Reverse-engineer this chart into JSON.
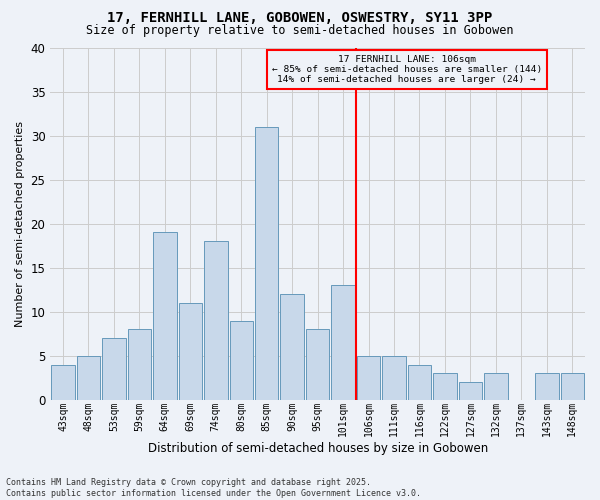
{
  "title1": "17, FERNHILL LANE, GOBOWEN, OSWESTRY, SY11 3PP",
  "title2": "Size of property relative to semi-detached houses in Gobowen",
  "xlabel": "Distribution of semi-detached houses by size in Gobowen",
  "ylabel": "Number of semi-detached properties",
  "categories": [
    "43sqm",
    "48sqm",
    "53sqm",
    "59sqm",
    "64sqm",
    "69sqm",
    "74sqm",
    "80sqm",
    "85sqm",
    "90sqm",
    "95sqm",
    "101sqm",
    "106sqm",
    "111sqm",
    "116sqm",
    "122sqm",
    "127sqm",
    "132sqm",
    "137sqm",
    "143sqm",
    "148sqm"
  ],
  "values": [
    4,
    5,
    7,
    8,
    19,
    11,
    18,
    9,
    31,
    12,
    8,
    13,
    5,
    5,
    4,
    3,
    2,
    3,
    0,
    3,
    3
  ],
  "bar_color": "#c8d8ea",
  "bar_edge_color": "#6699bb",
  "grid_color": "#cccccc",
  "bg_color": "#eef2f8",
  "vline_color": "red",
  "vline_idx": 12,
  "annotation_title": "17 FERNHILL LANE: 106sqm",
  "annotation_line1": "← 85% of semi-detached houses are smaller (144)",
  "annotation_line2": "14% of semi-detached houses are larger (24) →",
  "annotation_box_color": "red",
  "ylim": [
    0,
    40
  ],
  "yticks": [
    0,
    5,
    10,
    15,
    20,
    25,
    30,
    35,
    40
  ],
  "footnote1": "Contains HM Land Registry data © Crown copyright and database right 2025.",
  "footnote2": "Contains public sector information licensed under the Open Government Licence v3.0."
}
